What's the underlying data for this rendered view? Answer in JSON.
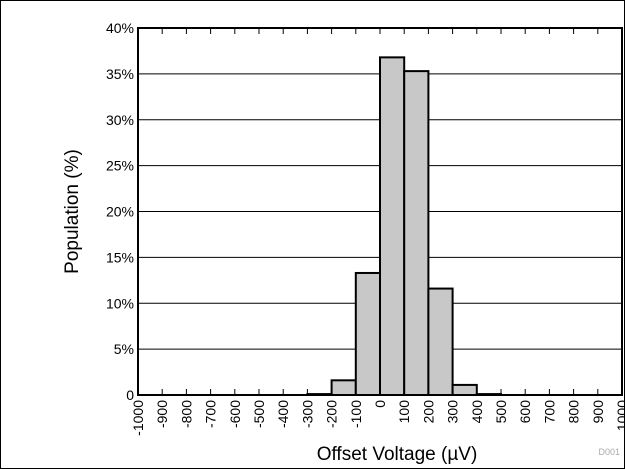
{
  "chart_data": {
    "type": "bar",
    "title": "",
    "xlabel": "Offset Voltage (µV)",
    "ylabel": "Population (%)",
    "x_tick_labels": [
      "-1000",
      "-900",
      "-800",
      "-700",
      "-600",
      "-500",
      "-400",
      "-300",
      "-200",
      "-100",
      "0",
      "100",
      "200",
      "300",
      "400",
      "500",
      "600",
      "700",
      "800",
      "900",
      "1000"
    ],
    "y_tick_labels": [
      "0",
      "5%",
      "10%",
      "15%",
      "20%",
      "25%",
      "30%",
      "35%",
      "40%"
    ],
    "bin_edges": [
      -1000,
      -900,
      -800,
      -700,
      -600,
      -500,
      -400,
      -300,
      -200,
      -100,
      0,
      100,
      200,
      300,
      400,
      500,
      600,
      700,
      800,
      900,
      1000
    ],
    "values": [
      0,
      0,
      0,
      0,
      0,
      0,
      0,
      0.1,
      1.6,
      13.3,
      36.8,
      35.3,
      11.6,
      1.1,
      0.1,
      0,
      0,
      0,
      0,
      0
    ],
    "xlim": [
      -1000,
      1000
    ],
    "ylim": [
      0,
      40
    ],
    "grid": "horizontal",
    "bar_color": "#c8c8c8",
    "bar_edge_color": "#000000",
    "figure_id": "D001"
  }
}
